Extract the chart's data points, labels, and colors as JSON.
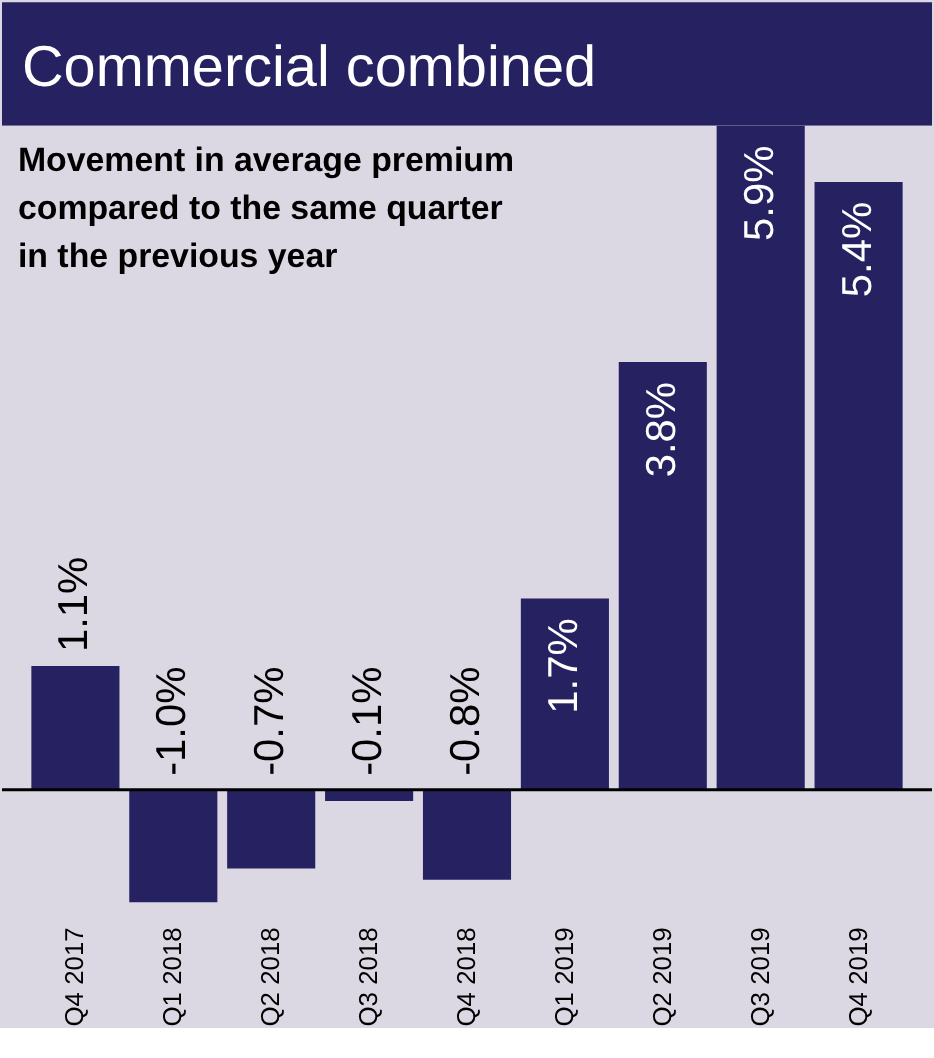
{
  "chart_data": {
    "type": "bar",
    "title": "Commercial combined",
    "subtitle": "Movement in average premium compared to the same quarter in the previous year",
    "categories": [
      "Q4 2017",
      "Q1 2018",
      "Q2 2018",
      "Q3 2018",
      "Q4 2018",
      "Q1 2019",
      "Q2 2019",
      "Q3 2019",
      "Q4 2019"
    ],
    "values": [
      1.1,
      -1.0,
      -0.7,
      -0.1,
      -0.8,
      1.7,
      3.8,
      5.9,
      5.4
    ],
    "value_labels": [
      "1.1%",
      "-1.0%",
      "-0.7%",
      "-0.1%",
      "-0.8%",
      "1.7%",
      "3.8%",
      "5.9%",
      "5.4%"
    ],
    "color": "#262262",
    "ylim": [
      -1.0,
      5.9
    ],
    "tick_labels": "x"
  }
}
